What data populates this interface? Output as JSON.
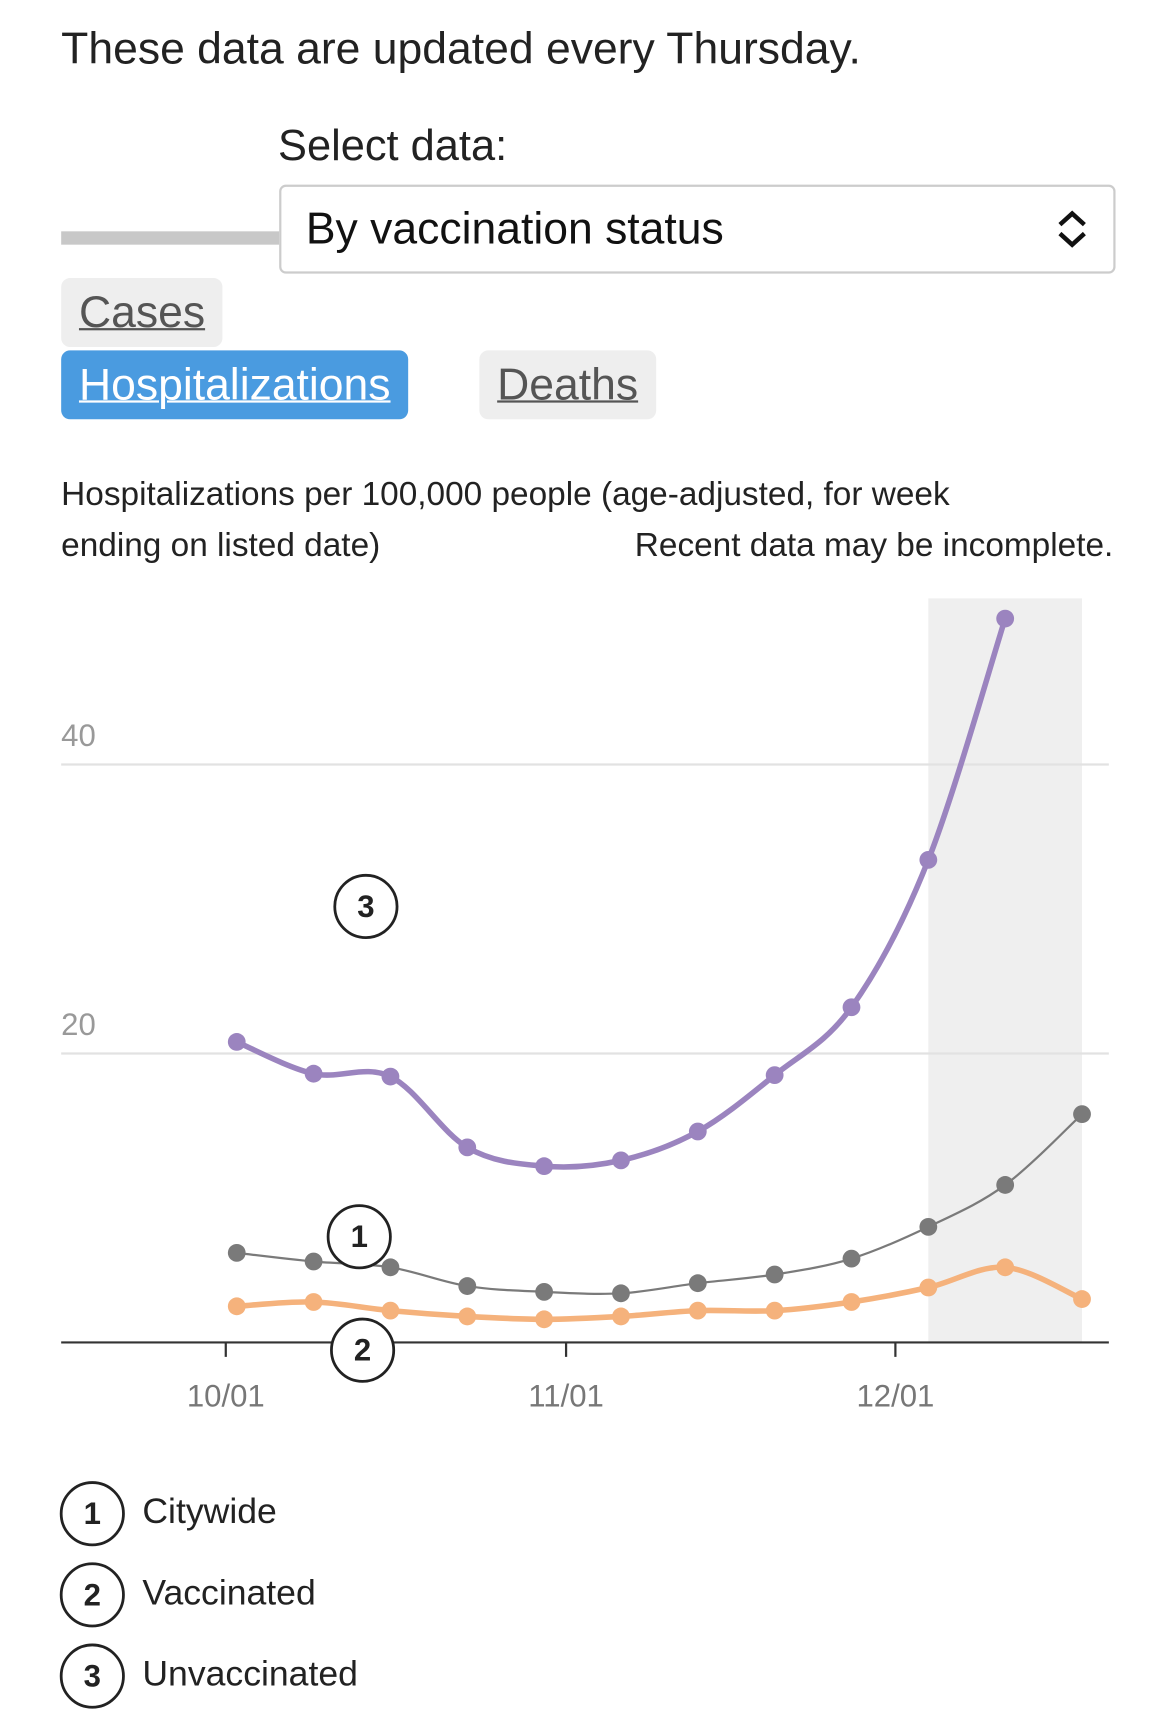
{
  "header": {
    "title": "These data are updated every Thursday."
  },
  "controls": {
    "select_label": "Select data:",
    "select_value": "By vaccination status",
    "tabs": [
      "Cases",
      "Hospitalizations",
      "Deaths"
    ],
    "active_tab": 1
  },
  "chart_data": {
    "type": "line",
    "subtitle": "Hospitalizations per 100,000 people (age-adjusted, for week ending on listed date)",
    "note": "Recent data may be incomplete.",
    "x": [
      "10/02",
      "10/09",
      "10/16",
      "10/23",
      "10/30",
      "11/06",
      "11/13",
      "11/20",
      "11/27",
      "12/04",
      "12/11",
      "12/18"
    ],
    "xticks": [
      "10/01",
      "11/01",
      "12/01"
    ],
    "shaded_range": [
      "12/04",
      "12/18"
    ],
    "ylim": [
      0,
      51.5
    ],
    "yticks": [
      20,
      40
    ],
    "grid": true,
    "series": [
      {
        "name": "Citywide",
        "label": "1",
        "color": "#7a7a7a",
        "values": [
          6.2,
          5.6,
          5.2,
          3.9,
          3.5,
          3.4,
          4.1,
          4.7,
          5.8,
          8.0,
          10.9,
          15.8
        ]
      },
      {
        "name": "Vaccinated",
        "label": "2",
        "color": "#f5b27c",
        "values": [
          2.5,
          2.8,
          2.2,
          1.8,
          1.6,
          1.8,
          2.2,
          2.2,
          2.8,
          3.8,
          5.2,
          3.0
        ]
      },
      {
        "name": "Unvaccinated",
        "label": "3",
        "color": "#9b84bf",
        "values": [
          20.8,
          18.6,
          18.4,
          13.5,
          12.2,
          12.6,
          14.6,
          18.5,
          23.2,
          33.4,
          50.1,
          null
        ]
      }
    ]
  }
}
